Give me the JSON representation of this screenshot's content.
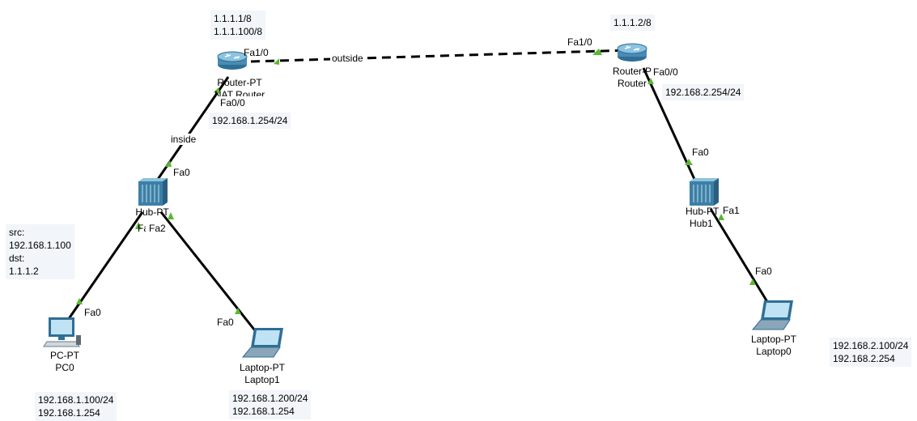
{
  "links": {
    "outside_label": "outside",
    "inside_label": "inside"
  },
  "colors": {
    "cable": "#000000",
    "link_up": "#5ab82e",
    "note_bg": "#f2f5f9",
    "device_blue": "#4a8bb3"
  },
  "devices": {
    "router_nat": {
      "type_label": "Router-PT",
      "name_label": "NAT Router",
      "port_fa1_0": "Fa1/0",
      "port_fa0_0": "Fa0/0",
      "ip_note_line1": "1.1.1.1/8",
      "ip_note_line2": "1.1.1.100/8",
      "inside_ip_note": "192.168.1.254/24",
      "icon": "router-icon"
    },
    "router_remote": {
      "type_label": "Router-PT",
      "name_label": "Router",
      "port_fa1_0": "Fa1/0",
      "port_fa0_0": "Fa0/0",
      "ip_note": "1.1.1.2/8",
      "inside_ip_note": "192.168.2.254/24",
      "icon": "router-icon"
    },
    "hub0": {
      "type_label": "Hub-PT",
      "port_fa0": "Fa0",
      "port_fa1": "Fa1",
      "port_fa2": "Fa2",
      "icon": "hub-icon"
    },
    "hub1": {
      "type_label": "Hub-PT",
      "name_label": "Hub1",
      "port_fa0": "Fa0",
      "port_fa1": "Fa1",
      "icon": "hub-icon"
    },
    "pc0": {
      "type_label": "PC-PT",
      "name_label": "PC0",
      "port": "Fa0",
      "ip_line1": "192.168.1.100/24",
      "ip_line2": "192.168.1.254",
      "icon": "desktop-pc-icon"
    },
    "laptop1": {
      "type_label": "Laptop-PT",
      "name_label": "Laptop1",
      "port": "Fa0",
      "ip_line1": "192.168.1.200/24",
      "ip_line2": "192.168.1.254",
      "icon": "laptop-icon"
    },
    "laptop0": {
      "type_label": "Laptop-PT",
      "name_label": "Laptop0",
      "port": "Fa0",
      "ip_line1": "192.168.2.100/24",
      "ip_line2": "192.168.2.254",
      "icon": "laptop-icon"
    }
  },
  "notes": {
    "src_dst": {
      "line1": "src:",
      "line2": "192.168.1.100",
      "line3": "dst:",
      "line4": "1.1.1.2"
    }
  }
}
